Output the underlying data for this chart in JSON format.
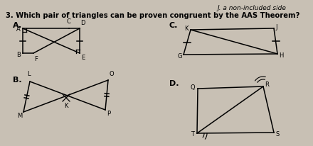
{
  "bg_color": "#c8c0b4",
  "title_top_right": "J. a non-included side",
  "question": "3. Which pair of triangles can be proven congruent by the AAS Theorem?",
  "label_A": "A.",
  "label_B": "B.",
  "label_C": "C.",
  "label_D": "D.",
  "text_color": "#000000",
  "fig_w": 4.4,
  "fig_h": 2.06,
  "dpi": 100
}
